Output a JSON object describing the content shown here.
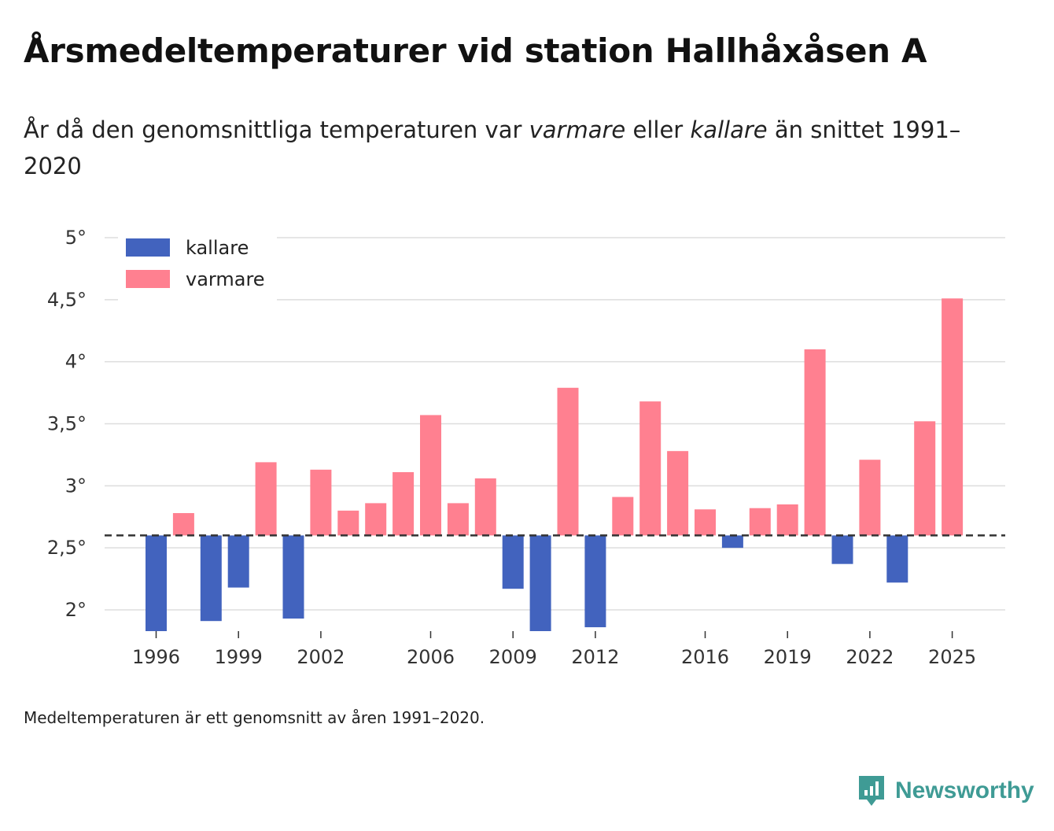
{
  "header": {
    "title": "Årsmedeltemperaturer vid station Hallhåxåsen A",
    "subtitle_part1": "År då den genomsnittliga temperaturen var ",
    "subtitle_warmer": "varmare",
    "subtitle_part2": " eller ",
    "subtitle_colder": "kallare",
    "subtitle_part3": " än snittet 1991–2020"
  },
  "footnote": "Medeltemperaturen är ett genomsnitt av åren 1991–2020.",
  "brand": {
    "name": "Newsworthy",
    "icon": "newsworthy-logo-icon",
    "color": "#3f9b95"
  },
  "colors": {
    "colder": "#4263be",
    "warmer": "#ff8090",
    "reference": "#333333",
    "grid": "#dddddd"
  },
  "chart_data": {
    "type": "bar",
    "title": "Årsmedeltemperaturer vid station Hallhåxåsen A",
    "xlabel": "",
    "ylabel": "",
    "ylim": [
      1.8,
      5.0
    ],
    "xlim": [
      1995,
      2026
    ],
    "baseline": 2.6,
    "baseline_style": "dashed",
    "grid": true,
    "legend": {
      "position": "top-left",
      "entries": [
        {
          "label": "kallare",
          "color": "#4263be"
        },
        {
          "label": "varmare",
          "color": "#ff8090"
        }
      ]
    },
    "y_ticks": [
      {
        "value": 2.0,
        "label": "2°"
      },
      {
        "value": 2.5,
        "label": "2,5°"
      },
      {
        "value": 3.0,
        "label": "3°"
      },
      {
        "value": 3.5,
        "label": "3,5°"
      },
      {
        "value": 4.0,
        "label": "4°"
      },
      {
        "value": 4.5,
        "label": "4,5°"
      },
      {
        "value": 5.0,
        "label": "5°"
      }
    ],
    "x_ticks": [
      1996,
      1999,
      2002,
      2006,
      2009,
      2012,
      2016,
      2019,
      2022,
      2025
    ],
    "years": [
      1996,
      1997,
      1998,
      1999,
      2000,
      2001,
      2002,
      2003,
      2004,
      2005,
      2006,
      2007,
      2008,
      2009,
      2010,
      2011,
      2012,
      2013,
      2014,
      2015,
      2016,
      2017,
      2018,
      2019,
      2020,
      2021,
      2022,
      2023,
      2024,
      2025
    ],
    "values": [
      1.82,
      2.78,
      1.91,
      2.18,
      3.19,
      1.93,
      3.13,
      2.8,
      2.86,
      3.11,
      3.57,
      2.86,
      3.06,
      2.17,
      1.82,
      3.79,
      1.86,
      2.91,
      3.68,
      3.28,
      2.81,
      2.5,
      2.82,
      2.85,
      4.1,
      2.37,
      3.21,
      2.22,
      3.52,
      4.51
    ]
  }
}
